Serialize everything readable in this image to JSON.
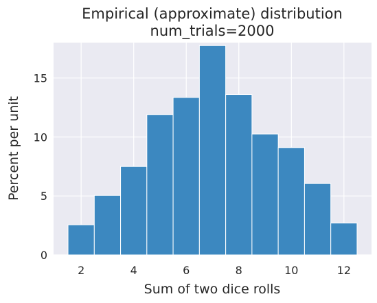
{
  "chart_data": {
    "type": "bar",
    "title_line1": "Empirical (approximate) distribution",
    "title_line2": "num_trials=2000",
    "xlabel": "Sum of two dice rolls",
    "ylabel": "Percent per unit",
    "categories": [
      2,
      3,
      4,
      5,
      6,
      7,
      8,
      9,
      10,
      11,
      12
    ],
    "values": [
      2.55,
      5.05,
      7.5,
      11.9,
      13.35,
      17.75,
      13.6,
      10.25,
      9.1,
      6.05,
      2.7
    ],
    "xlim": [
      0.95,
      13.05
    ],
    "ylim": [
      0,
      18
    ],
    "xticks": [
      2,
      4,
      6,
      8,
      10,
      12
    ],
    "yticks": [
      0,
      5,
      10,
      15
    ],
    "grid": true,
    "colors": {
      "bar_fill": "#3c88c0",
      "bar_edge": "#ffffff",
      "plot_background": "#eaeaf2",
      "grid": "#ffffff"
    }
  }
}
